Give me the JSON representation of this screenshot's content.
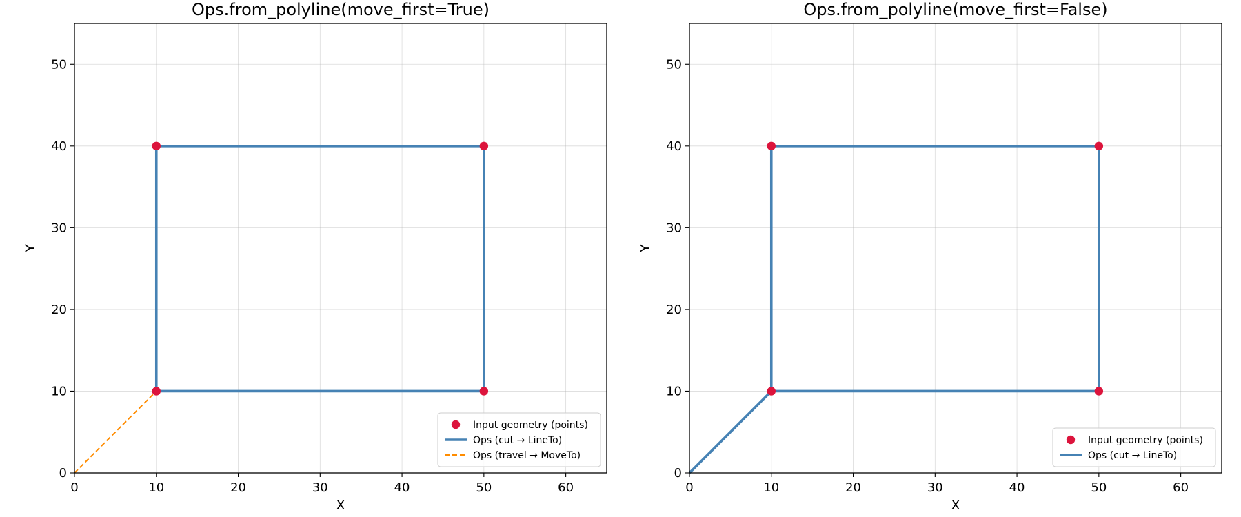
{
  "chart_data": [
    {
      "type": "line",
      "title": "Ops.from_polyline(move_first=True)",
      "xlabel": "X",
      "ylabel": "Y",
      "xlim": [
        0,
        65
      ],
      "ylim": [
        0,
        55
      ],
      "xticks": [
        0,
        10,
        20,
        30,
        40,
        50,
        60
      ],
      "yticks": [
        0,
        10,
        20,
        30,
        40,
        50
      ],
      "grid": true,
      "legend_position": "lower-right",
      "series": [
        {
          "name": "Input geometry (points)",
          "kind": "scatter",
          "color": "#dc143c",
          "points": [
            [
              10,
              10
            ],
            [
              50,
              10
            ],
            [
              50,
              40
            ],
            [
              10,
              40
            ]
          ]
        },
        {
          "name": "Ops (cut → LineTo)",
          "kind": "line",
          "color": "#4682b4",
          "style": "solid",
          "points": [
            [
              10,
              10
            ],
            [
              50,
              10
            ],
            [
              50,
              40
            ],
            [
              10,
              40
            ],
            [
              10,
              10
            ]
          ]
        },
        {
          "name": "Ops (travel → MoveTo)",
          "kind": "line",
          "color": "#ff8c00",
          "style": "dashed",
          "points": [
            [
              0,
              0
            ],
            [
              10,
              10
            ]
          ]
        }
      ]
    },
    {
      "type": "line",
      "title": "Ops.from_polyline(move_first=False)",
      "xlabel": "X",
      "ylabel": "Y",
      "xlim": [
        0,
        65
      ],
      "ylim": [
        0,
        55
      ],
      "xticks": [
        0,
        10,
        20,
        30,
        40,
        50,
        60
      ],
      "yticks": [
        0,
        10,
        20,
        30,
        40,
        50
      ],
      "grid": true,
      "legend_position": "lower-right",
      "series": [
        {
          "name": "Input geometry (points)",
          "kind": "scatter",
          "color": "#dc143c",
          "points": [
            [
              10,
              10
            ],
            [
              50,
              10
            ],
            [
              50,
              40
            ],
            [
              10,
              40
            ]
          ]
        },
        {
          "name": "Ops (cut → LineTo)",
          "kind": "line",
          "color": "#4682b4",
          "style": "solid",
          "points": [
            [
              0,
              0
            ],
            [
              10,
              10
            ],
            [
              50,
              10
            ],
            [
              50,
              40
            ],
            [
              10,
              40
            ],
            [
              10,
              10
            ]
          ]
        }
      ]
    }
  ]
}
